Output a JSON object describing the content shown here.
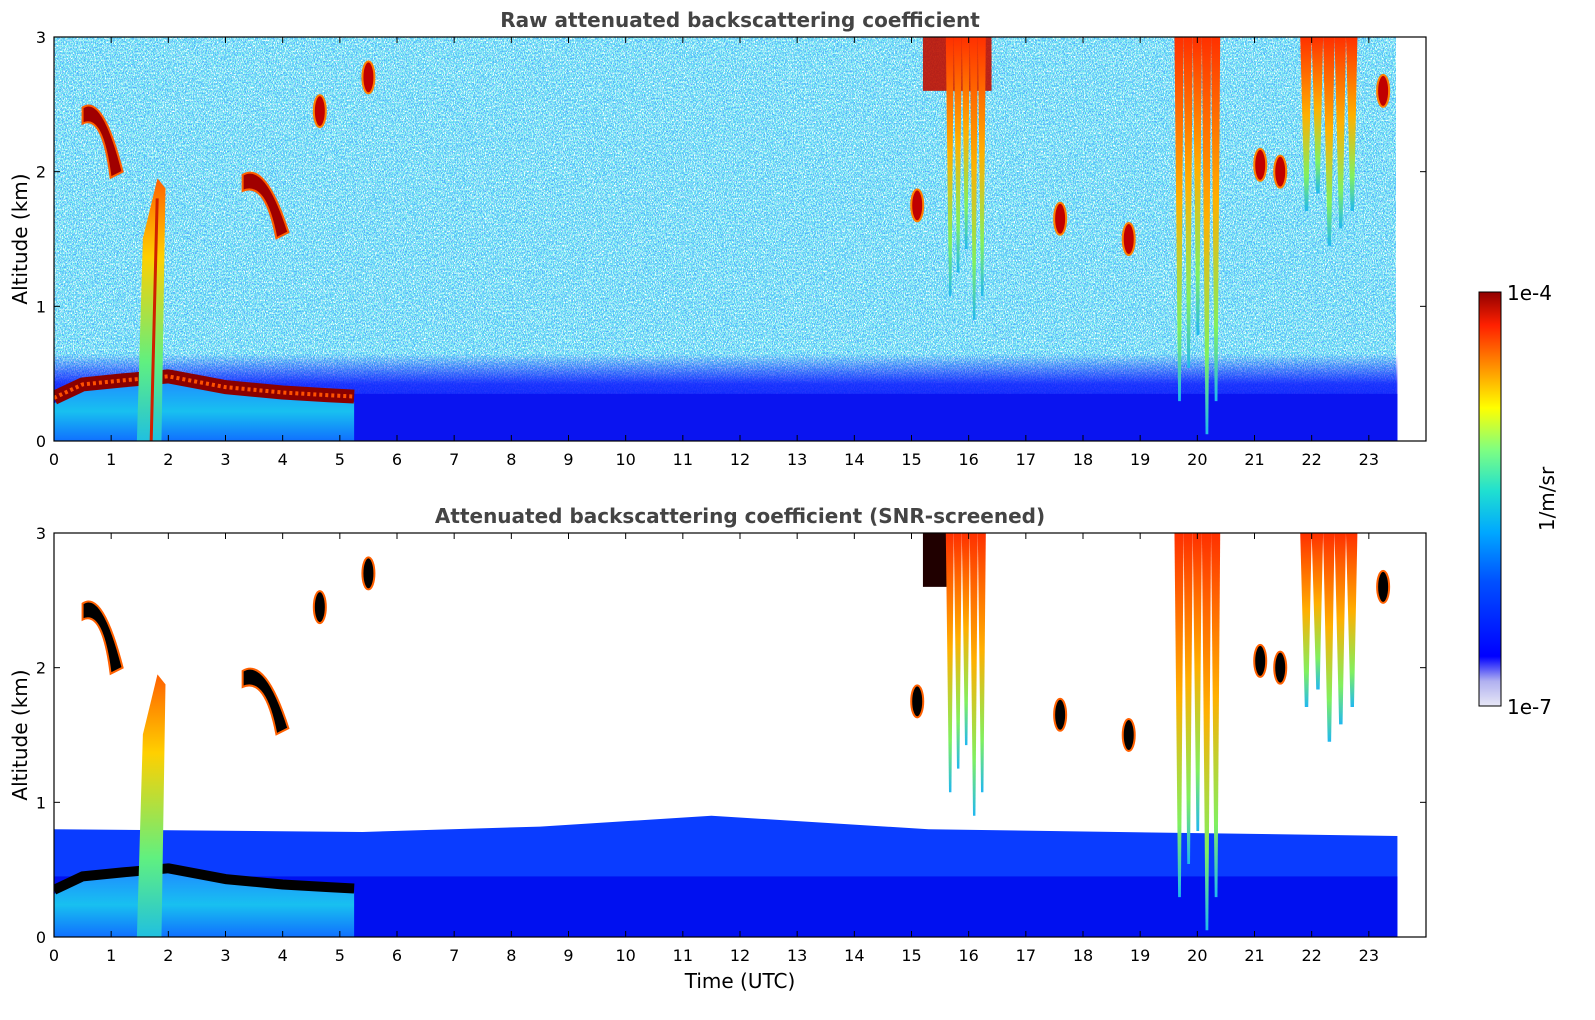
{
  "chart_data": [
    {
      "type": "heatmap",
      "title": "Raw attenuated backscattering coefficient",
      "ylabel": "Altitude (km)",
      "xlabel": "",
      "xlim": [
        0,
        24
      ],
      "ylim": [
        0,
        3
      ],
      "x_ticks": [
        "0",
        "1",
        "2",
        "3",
        "4",
        "5",
        "6",
        "7",
        "8",
        "9",
        "10",
        "11",
        "12",
        "13",
        "14",
        "15",
        "16",
        "17",
        "18",
        "19",
        "20",
        "21",
        "22",
        "23"
      ],
      "y_ticks": [
        "0",
        "1",
        "2",
        "3"
      ],
      "data_end_hour": 23.5,
      "features": [
        {
          "kind": "boundary_layer_top",
          "x": [
            0,
            0.5,
            1.2,
            2.0,
            3.0,
            4.0,
            4.8,
            5.25
          ],
          "y": [
            0.32,
            0.42,
            0.45,
            0.48,
            0.4,
            0.36,
            0.34,
            0.33
          ]
        },
        {
          "kind": "cloud_layer",
          "x_start": 0.5,
          "x_end": 1.2,
          "y_top": 2.55,
          "y_bottom": 2.0
        },
        {
          "kind": "precipitation_column",
          "x_start": 1.45,
          "x_end": 1.95,
          "y_top": 1.95,
          "y_bottom": 0
        },
        {
          "kind": "cloud_layer",
          "x_start": 3.3,
          "x_end": 4.1,
          "y_top": 2.05,
          "y_bottom": 1.55
        },
        {
          "kind": "cloud_patch",
          "x": 4.65,
          "y": 2.45
        },
        {
          "kind": "cloud_patch",
          "x": 5.5,
          "y": 2.7
        },
        {
          "kind": "cloud_top_band",
          "x_start": 15.2,
          "x_end": 16.4,
          "y_top": 3.0,
          "y_bottom": 2.6
        },
        {
          "kind": "virga_fallstreak",
          "x_start": 15.6,
          "x_end": 16.3,
          "y_top": 3.0,
          "y_bottom": 0.9
        },
        {
          "kind": "cloud_patch",
          "x": 15.1,
          "y": 1.75
        },
        {
          "kind": "cloud_patch",
          "x": 17.6,
          "y": 1.65
        },
        {
          "kind": "cloud_patch",
          "x": 18.8,
          "y": 1.5
        },
        {
          "kind": "virga_fallstreak",
          "x_start": 19.6,
          "x_end": 20.4,
          "y_top": 3.0,
          "y_bottom": 0.05
        },
        {
          "kind": "cloud_patch",
          "x": 21.1,
          "y": 2.05
        },
        {
          "kind": "cloud_patch",
          "x": 21.45,
          "y": 2.0
        },
        {
          "kind": "virga_fallstreak",
          "x_start": 21.8,
          "x_end": 22.8,
          "y_top": 3.0,
          "y_bottom": 1.45
        },
        {
          "kind": "cloud_patch",
          "x": 23.25,
          "y": 2.6
        }
      ]
    },
    {
      "type": "heatmap",
      "title": "Attenuated backscattering coefficient (SNR-screened)",
      "ylabel": "Altitude (km)",
      "xlabel": "Time (UTC)",
      "xlim": [
        0,
        24
      ],
      "ylim": [
        0,
        3
      ],
      "x_ticks": [
        "0",
        "1",
        "2",
        "3",
        "4",
        "5",
        "6",
        "7",
        "8",
        "9",
        "10",
        "11",
        "12",
        "13",
        "14",
        "15",
        "16",
        "17",
        "18",
        "19",
        "20",
        "21",
        "22",
        "23"
      ],
      "y_ticks": [
        "0",
        "1",
        "2",
        "3"
      ],
      "data_end_hour": 23.5,
      "screened_region_top_km": [
        0.8,
        0.78,
        0.82,
        0.9,
        0.8,
        0.75
      ],
      "screened_region_x": [
        0,
        5.4,
        8.5,
        11.5,
        15.3,
        23.5
      ]
    }
  ],
  "colorbar": {
    "label": "1/m/sr",
    "max_label": "1e-4",
    "min_label": "1e-7",
    "colors": [
      "#e8e8f6",
      "#b0b0f0",
      "#0000ff",
      "#0050ff",
      "#00a8ff",
      "#20e0d0",
      "#80ff80",
      "#ffff00",
      "#ff9000",
      "#ff2000",
      "#900000"
    ]
  },
  "colors": {
    "background_noise_blue": "#1a2bff",
    "boundary_layer_blue": "#0a14f0",
    "aerosol_cyan": "#1ec8f0",
    "cloud_red": "#c01010",
    "cloud_black": "#000000"
  }
}
